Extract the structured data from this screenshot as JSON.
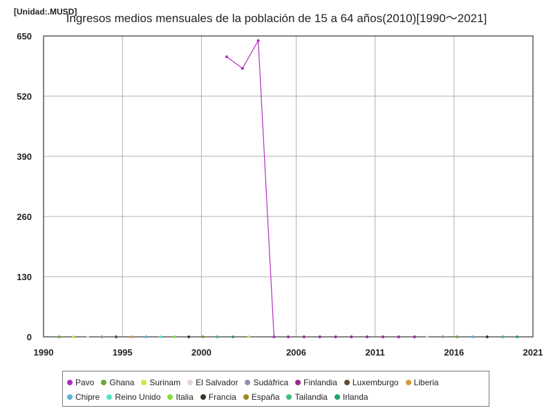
{
  "chart_data": {
    "type": "line",
    "title": "Ingresos medios mensuales de la población de 15 a 64 años(2010)[1990～2021]",
    "unit_label": "[Unidad:.MUSD]",
    "xlim": [
      1990,
      2021
    ],
    "ylim": [
      0,
      650
    ],
    "x_ticks": [
      "1990",
      "1995",
      "2000",
      "2006",
      "2011",
      "2016",
      "2021"
    ],
    "y_ticks": [
      "0",
      "130",
      "260",
      "390",
      "520",
      "650"
    ],
    "grid": true,
    "legend_position": "bottom",
    "series": [
      {
        "name": "Pavo",
        "color": "#b02dc0",
        "line": true,
        "points": [
          [
            2001.6,
            605
          ],
          [
            2002.6,
            580
          ],
          [
            2003.6,
            640
          ],
          [
            2004.6,
            0
          ]
        ]
      },
      {
        "name": "Ghana",
        "color": "#6aa838",
        "points": [
          [
            1991.0,
            0
          ],
          [
            2016.2,
            0
          ]
        ]
      },
      {
        "name": "Surinam",
        "color": "#c7e84a",
        "points": [
          [
            1991.9,
            0
          ],
          [
            2003.0,
            0
          ]
        ]
      },
      {
        "name": "El Salvador",
        "color": "#e4d2dc",
        "points": [
          [
            1992.8,
            0
          ],
          [
            2014.3,
            0
          ]
        ]
      },
      {
        "name": "Sudáfrica",
        "color": "#8a95a8",
        "points": [
          [
            1993.7,
            0
          ],
          [
            2015.3,
            0
          ]
        ]
      },
      {
        "name": "Finlandia",
        "color": "#a0258f",
        "points": [
          [
            2005.5,
            0
          ],
          [
            2006.5,
            0
          ],
          [
            2007.5,
            0
          ],
          [
            2008.5,
            0
          ],
          [
            2009.5,
            0
          ],
          [
            2010.5,
            0
          ],
          [
            2011.5,
            0
          ],
          [
            2012.5,
            0
          ],
          [
            2013.5,
            0
          ]
        ]
      },
      {
        "name": "Luxemburgo",
        "color": "#6b4a2a",
        "points": [
          [
            1994.6,
            0
          ]
        ]
      },
      {
        "name": "Liberia",
        "color": "#d4993a",
        "points": [
          [
            1995.6,
            0
          ]
        ]
      },
      {
        "name": "Chipre",
        "color": "#5ab4d8",
        "points": [
          [
            1996.5,
            0
          ],
          [
            2017.2,
            0
          ]
        ]
      },
      {
        "name": "Reino Unido",
        "color": "#4fe8c2",
        "points": [
          [
            1997.4,
            0
          ]
        ]
      },
      {
        "name": "Italia",
        "color": "#86dd3a",
        "points": [
          [
            1998.3,
            0
          ]
        ]
      },
      {
        "name": "Francia",
        "color": "#2f3a2a",
        "points": [
          [
            1999.2,
            0
          ],
          [
            2018.1,
            0
          ]
        ]
      },
      {
        "name": "España",
        "color": "#9a8a1e",
        "points": [
          [
            2000.1,
            0
          ]
        ]
      },
      {
        "name": "Tailandia",
        "color": "#3fbf7a",
        "points": [
          [
            2001.0,
            0
          ],
          [
            2019.1,
            0
          ]
        ]
      },
      {
        "name": "Irlanda",
        "color": "#1fa36a",
        "points": [
          [
            2002.0,
            0
          ],
          [
            2020.0,
            0
          ]
        ]
      }
    ]
  }
}
